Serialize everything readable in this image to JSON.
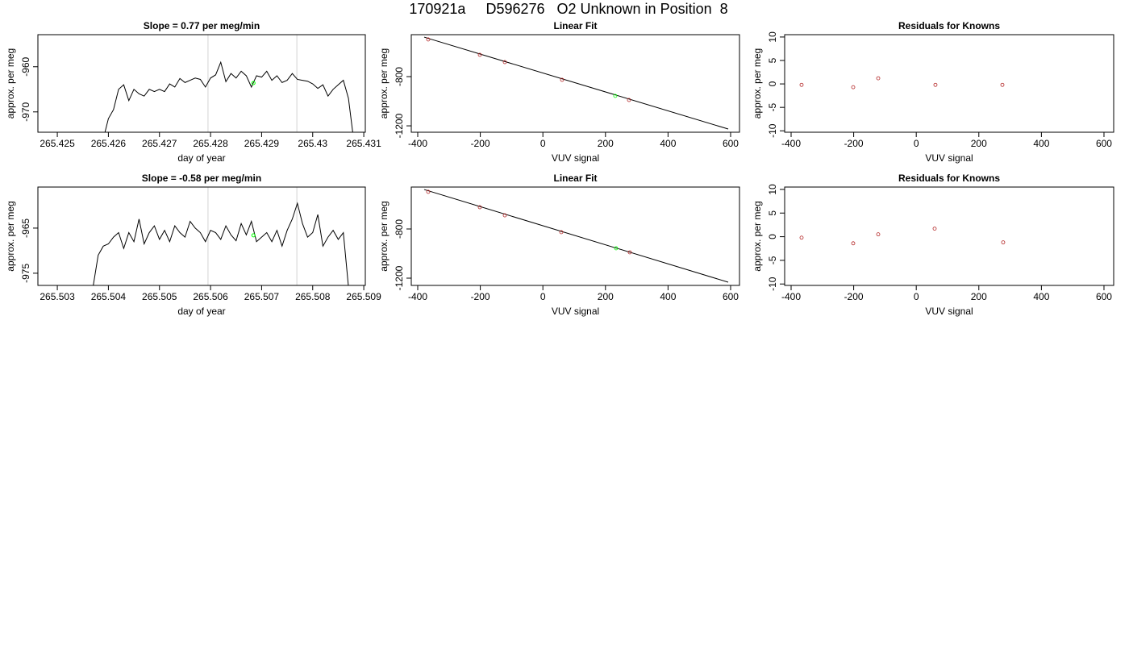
{
  "title": "170921a     D596276   O2 Unknown in Position  8",
  "chart_data": [
    {
      "type": "line",
      "title": "Slope =  0.77  per meg/min",
      "xlabel": "day of year",
      "ylabel": "approx. per meg",
      "xlim": [
        265.42462,
        265.43103
      ],
      "ylim": [
        -974.5,
        -952.9
      ],
      "xticks": [
        265.425,
        265.426,
        265.427,
        265.428,
        265.429,
        265.43,
        265.431
      ],
      "yticks": [
        -970,
        -960
      ],
      "x": [
        265.4259,
        265.426,
        265.4261,
        265.4262,
        265.4263,
        265.4264,
        265.4265,
        265.4266,
        265.4267,
        265.4268,
        265.4269,
        265.427,
        265.4271,
        265.4272,
        265.4273,
        265.4274,
        265.4275,
        265.4276,
        265.4277,
        265.4278,
        265.4279,
        265.428,
        265.4281,
        265.4282,
        265.4283,
        265.4284,
        265.4285,
        265.4286,
        265.4287,
        265.4288,
        265.4289,
        265.429,
        265.4291,
        265.4292,
        265.4293,
        265.4294,
        265.4295,
        265.4296,
        265.4297,
        265.4298,
        265.4299,
        265.43,
        265.4301,
        265.4302,
        265.4303,
        265.4304,
        265.4305,
        265.4306,
        265.4307,
        265.4308
      ],
      "series": [
        {
          "color": "#000000",
          "values": [
            -976,
            -971.5,
            -969.5,
            -965,
            -964,
            -967.5,
            -965,
            -966,
            -966.5,
            -965,
            -965.5,
            -965,
            -965.5,
            -963.8,
            -964.5,
            -962.6,
            -963.5,
            -963,
            -962.5,
            -962.8,
            -964.5,
            -962.5,
            -961.8,
            -959,
            -963.3,
            -961.5,
            -962.5,
            -961,
            -962,
            -964.5,
            -962,
            -962.3,
            -961,
            -963,
            -962,
            -963.5,
            -963,
            -961.5,
            -962.8,
            -963,
            -963.2,
            -963.8,
            -964.8,
            -964,
            -966.5,
            -965,
            -964,
            -963,
            -967,
            -976
          ]
        }
      ],
      "vlines": [
        265.42795,
        265.42969
      ],
      "vline_color": "#d3d3d3",
      "highlight": {
        "x": 265.42884,
        "y": -963.6,
        "color": "#00ff00"
      }
    },
    {
      "type": "scatter",
      "title": "Linear Fit",
      "xlabel": "VUV signal",
      "ylabel": "approx. per meg",
      "xlim": [
        -420.6,
        628.4
      ],
      "ylim": [
        -1252,
        -459
      ],
      "xticks": [
        -400,
        -200,
        0,
        200,
        400,
        600
      ],
      "yticks": [
        -1200,
        -800
      ],
      "series": [
        {
          "color": "#b22222",
          "x": [
            -366.5,
            -201.5,
            -121.6,
            61.3,
            275.3
          ],
          "values": [
            -498,
            -623,
            -682,
            -826,
            -990
          ]
        },
        {
          "color": "#00ff00",
          "x": [
            231.4
          ],
          "values": [
            -957
          ]
        }
      ],
      "fit_line": {
        "color": "#000000",
        "x": [
          -379.4,
          592.3
        ],
        "values": [
          -479,
          -1226
        ]
      }
    },
    {
      "type": "scatter",
      "title": "Residuals for Knowns",
      "xlabel": "VUV signal",
      "ylabel": "approx. per meg",
      "xlim": [
        -420.6,
        631
      ],
      "ylim": [
        -10.3,
        10.5
      ],
      "xticks": [
        -400,
        -200,
        0,
        200,
        400,
        600
      ],
      "yticks": [
        -10,
        -5,
        0,
        5,
        10
      ],
      "series": [
        {
          "color": "#b22222",
          "x": [
            -366.5,
            -201.5,
            -121.6,
            61.3,
            275.3
          ],
          "values": [
            -0.2,
            -0.7,
            1.2,
            -0.2,
            -0.2
          ]
        }
      ]
    },
    {
      "type": "line",
      "title": "Slope =  -0.58  per meg/min",
      "xlabel": "day of year",
      "ylabel": "approx. per meg",
      "xlim": [
        265.50262,
        265.50903
      ],
      "ylim": [
        -977.7,
        -955.9
      ],
      "xticks": [
        265.503,
        265.504,
        265.505,
        265.506,
        265.507,
        265.508,
        265.509
      ],
      "yticks": [
        -975,
        -965
      ],
      "x": [
        265.5037,
        265.5038,
        265.5039,
        265.504,
        265.5041,
        265.5042,
        265.5043,
        265.5044,
        265.5045,
        265.5046,
        265.5047,
        265.5048,
        265.5049,
        265.505,
        265.5051,
        265.5052,
        265.5053,
        265.5054,
        265.5055,
        265.5056,
        265.5057,
        265.5058,
        265.5059,
        265.506,
        265.5061,
        265.5062,
        265.5063,
        265.5064,
        265.5065,
        265.5066,
        265.5067,
        265.5068,
        265.5069,
        265.507,
        265.5071,
        265.5072,
        265.5073,
        265.5074,
        265.5075,
        265.5076,
        265.5077,
        265.5078,
        265.5079,
        265.508,
        265.5081,
        265.5082,
        265.5083,
        265.5084,
        265.5085,
        265.5086,
        265.5087
      ],
      "series": [
        {
          "color": "#000000",
          "values": [
            -978,
            -971,
            -969,
            -968.5,
            -967,
            -966,
            -969.5,
            -966,
            -968,
            -963,
            -968.5,
            -966,
            -964.5,
            -967.5,
            -965.5,
            -968,
            -964.5,
            -966,
            -967,
            -963.5,
            -965,
            -966,
            -968,
            -965.5,
            -966,
            -967.5,
            -964.5,
            -966.5,
            -967.8,
            -964,
            -966.5,
            -963.5,
            -968,
            -967,
            -966,
            -968,
            -965.5,
            -969,
            -965.5,
            -963,
            -959.5,
            -964,
            -967,
            -966,
            -962,
            -969,
            -967,
            -965.5,
            -967.5,
            -966,
            -978
          ]
        }
      ],
      "vlines": [
        265.50595,
        265.50769
      ],
      "vline_color": "#d3d3d3",
      "highlight": {
        "x": 265.50684,
        "y": -966.6,
        "color": "#00ff00"
      }
    },
    {
      "type": "scatter",
      "title": "Linear Fit",
      "xlabel": "VUV signal",
      "ylabel": "approx. per meg",
      "xlim": [
        -420.6,
        628.4
      ],
      "ylim": [
        -1259,
        -459
      ],
      "xticks": [
        -400,
        -200,
        0,
        200,
        400,
        600
      ],
      "yticks": [
        -1200,
        -800
      ],
      "series": [
        {
          "color": "#b22222",
          "x": [
            -366.5,
            -201.5,
            -121.6,
            58.8,
            277.8
          ],
          "values": [
            -498,
            -623,
            -689,
            -826,
            -990
          ]
        },
        {
          "color": "#00ff00",
          "x": [
            234
          ],
          "values": [
            -957
          ]
        }
      ],
      "fit_line": {
        "color": "#000000",
        "x": [
          -379.4,
          592.3
        ],
        "values": [
          -479,
          -1233
        ]
      }
    },
    {
      "type": "scatter",
      "title": "Residuals for Knowns",
      "xlabel": "VUV signal",
      "ylabel": "approx. per meg",
      "xlim": [
        -420.6,
        631
      ],
      "ylim": [
        -10.3,
        10.5
      ],
      "xticks": [
        -400,
        -200,
        0,
        200,
        400,
        600
      ],
      "yticks": [
        -10,
        -5,
        0,
        5,
        10
      ],
      "series": [
        {
          "color": "#b22222",
          "x": [
            -366.5,
            -201.5,
            -121.6,
            58.8,
            277.8
          ],
          "values": [
            -0.2,
            -1.4,
            0.5,
            1.7,
            -1.2
          ]
        }
      ]
    }
  ]
}
